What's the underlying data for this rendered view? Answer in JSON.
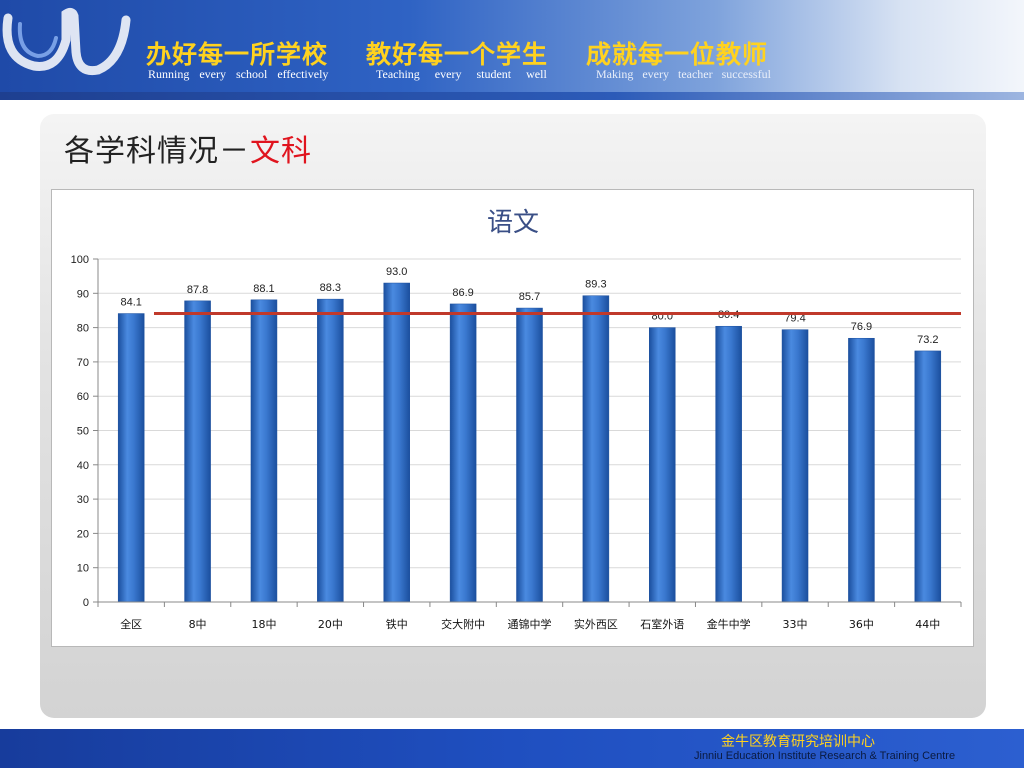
{
  "header": {
    "motto_cn": [
      "办好每一所学校",
      "教好每一个学生",
      "成就每一位教师"
    ],
    "motto_en": [
      "Running every school effectively",
      "Teaching every student well",
      "Making every teacher successful"
    ]
  },
  "slide": {
    "title_prefix": "各学科情况－",
    "title_accent": "文科"
  },
  "colors": {
    "bar": "#3a78cf",
    "bar_dark": "#1b4f9e",
    "reference_line": "#c0392b",
    "title_accent": "#e0141e"
  },
  "chart_data": {
    "type": "bar",
    "title": "语文",
    "categories": [
      "全区",
      "8中",
      "18中",
      "20中",
      "铁中",
      "交大附中",
      "通锦中学",
      "实外西区",
      "石室外语",
      "金牛中学",
      "33中",
      "36中",
      "44中"
    ],
    "values": [
      84.1,
      87.8,
      88.1,
      88.3,
      93.0,
      86.9,
      85.7,
      89.3,
      80.0,
      80.4,
      79.4,
      76.9,
      73.2
    ],
    "value_labels": [
      "84.1",
      "87.8",
      "88.1",
      "88.3",
      "93.0",
      "86.9",
      "85.7",
      "89.3",
      "80.0",
      "80.4",
      "79.4",
      "76.9",
      "73.2"
    ],
    "ylim": [
      0,
      100
    ],
    "yticks": [
      0,
      10,
      20,
      30,
      40,
      50,
      60,
      70,
      80,
      90,
      100
    ],
    "reference_line": 84.1,
    "grid": true,
    "legend": "none"
  },
  "footer": {
    "org_cn": "金牛区教育研究培训中心",
    "org_en": "Jinniu Education Institute Research & Training Centre"
  }
}
